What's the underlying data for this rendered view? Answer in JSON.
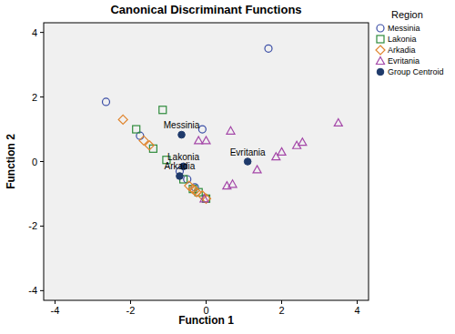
{
  "chart_data": {
    "type": "scatter",
    "title": "Canonical Discriminant Functions",
    "x_label": "Function 1",
    "y_label": "Function 2",
    "xlim": [
      -4.3,
      4.3
    ],
    "ylim": [
      -4.3,
      4.3
    ],
    "xticks": [
      -4,
      -2,
      0,
      2,
      4
    ],
    "yticks": [
      -4,
      -2,
      0,
      2,
      4
    ],
    "grid": false,
    "legend": "right",
    "legend_title": "Region",
    "series": [
      {
        "name": "Messinia",
        "color": "#3b4ea6",
        "marker": "circle",
        "x": [
          -2.65,
          -1.75,
          -0.1,
          1.65,
          -0.7,
          -0.5,
          -0.3,
          0
        ],
        "values": [
          1.85,
          0.8,
          1.0,
          3.5,
          -0.3,
          -0.55,
          -0.8,
          -1.15
        ]
      },
      {
        "name": "Lakonia",
        "color": "#2e8b3b",
        "marker": "square",
        "x": [
          -1.85,
          -1.15,
          -1.4,
          -1.05,
          -0.6,
          -0.35,
          -0.2,
          0
        ],
        "values": [
          1.0,
          1.6,
          0.4,
          0.05,
          -0.55,
          -0.85,
          -0.95,
          -1.15
        ]
      },
      {
        "name": "Arkadia",
        "color": "#e0852e",
        "marker": "diamond",
        "x": [
          -2.2,
          -1.65,
          -1.5,
          -0.45,
          -0.35,
          -0.3,
          -0.25,
          -0.1,
          0
        ],
        "values": [
          1.3,
          0.65,
          0.5,
          -0.75,
          -0.85,
          -0.9,
          -0.95,
          -1.05,
          -1.15
        ]
      },
      {
        "name": "Evritania",
        "color": "#a447a8",
        "marker": "triangle",
        "x": [
          -0.2,
          0,
          0.65,
          0.55,
          0.7,
          1.35,
          1.85,
          2.0,
          2.4,
          2.55,
          3.5,
          -0.05
        ],
        "values": [
          0.65,
          0.65,
          0.95,
          -0.75,
          -0.7,
          -0.25,
          0.15,
          0.3,
          0.5,
          0.6,
          1.2,
          -1.15
        ]
      },
      {
        "name": "Group Centroid",
        "color": "#1f3a6b",
        "marker": "dot",
        "x": [
          -0.65,
          -0.6,
          -0.7,
          1.1
        ],
        "values": [
          0.83,
          -0.15,
          -0.45,
          0.0
        ],
        "labels": [
          "Messinia",
          "Lakonia",
          "Arkadia",
          "Evritania"
        ]
      }
    ]
  }
}
